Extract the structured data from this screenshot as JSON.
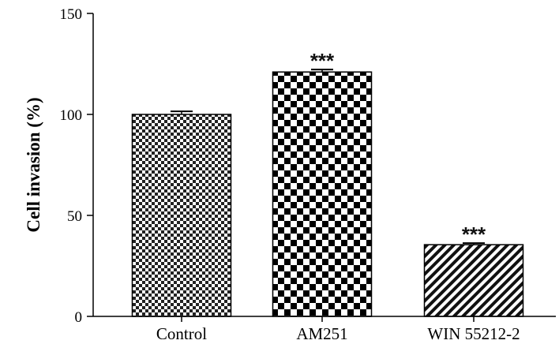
{
  "chart_data": {
    "type": "bar",
    "title": "",
    "xlabel": "",
    "ylabel": "Cell invasion (%)",
    "ylim": [
      0,
      150
    ],
    "yticks": [
      0,
      50,
      100,
      150
    ],
    "ytick_labels": [
      "0",
      "50",
      "100",
      "150"
    ],
    "categories": [
      "Control",
      "AM251",
      "WIN 55212-2"
    ],
    "values": [
      100,
      121,
      35.5
    ],
    "errors": [
      1.5,
      1.2,
      0.8
    ],
    "significance": [
      "",
      "***",
      "***"
    ],
    "patterns": [
      "fine-checker",
      "coarse-checker",
      "diagonal-stripes"
    ],
    "grid": false,
    "legend": "none"
  }
}
